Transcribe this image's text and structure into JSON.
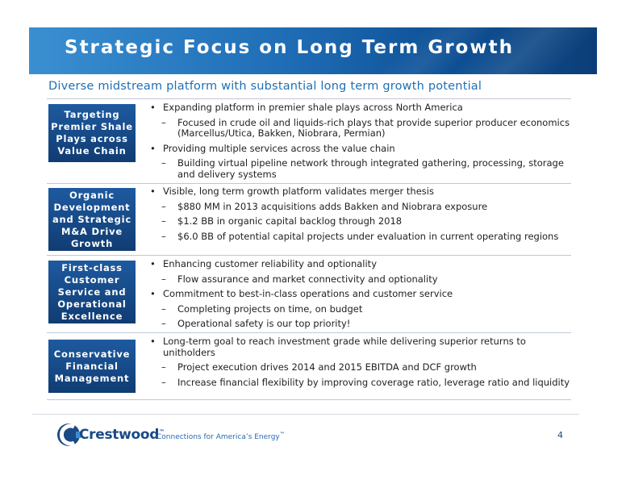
{
  "header": {
    "title": "Strategic Focus on Long Term Growth",
    "subtitle": "Diverse midstream platform with substantial long term growth potential"
  },
  "sections": [
    {
      "label": "Targeting Premier Shale Plays across Value Chain",
      "items": [
        {
          "level": 1,
          "marker": "•",
          "text": "Expanding platform in premier shale plays across North America"
        },
        {
          "level": 2,
          "marker": "–",
          "text": "Focused in crude oil and liquids-rich plays that provide superior producer economics (Marcellus/Utica, Bakken, Niobrara, Permian)"
        },
        {
          "level": 1,
          "marker": "•",
          "text": "Providing multiple services across the value chain"
        },
        {
          "level": 2,
          "marker": "–",
          "text": "Building virtual pipeline network through integrated gathering, processing, storage and delivery systems"
        }
      ]
    },
    {
      "label": "Organic Development and Strategic M&A Drive Growth",
      "items": [
        {
          "level": 1,
          "marker": "•",
          "text": "Visible, long term growth platform validates merger thesis"
        },
        {
          "level": 2,
          "marker": "–",
          "text": "$880 MM in 2013 acquisitions adds Bakken and Niobrara exposure"
        },
        {
          "level": 2,
          "marker": "–",
          "text": "$1.2 BB in organic capital backlog through 2018"
        },
        {
          "level": 2,
          "marker": "–",
          "text": "$6.0 BB of potential capital projects under evaluation in current operating regions"
        }
      ]
    },
    {
      "label": "First-class Customer Service and Operational Excellence",
      "items": [
        {
          "level": 1,
          "marker": "•",
          "text": "Enhancing customer reliability and optionality"
        },
        {
          "level": 2,
          "marker": "–",
          "text": "Flow assurance and market connectivity and optionality"
        },
        {
          "level": 1,
          "marker": "•",
          "text": "Commitment to best-in-class operations and customer service"
        },
        {
          "level": 2,
          "marker": "–",
          "text": "Completing projects on time, on budget"
        },
        {
          "level": 2,
          "marker": "–",
          "text": "Operational safety is our top priority!"
        }
      ]
    },
    {
      "label": "Conservative Financial Management",
      "items": [
        {
          "level": 1,
          "marker": "•",
          "text": "Long-term goal to reach investment grade while delivering superior returns to unitholders"
        },
        {
          "level": 2,
          "marker": "–",
          "text": "Project execution drives 2014 and 2015 EBITDA and DCF growth"
        },
        {
          "level": 2,
          "marker": "–",
          "text": "Increase financial flexibility by improving coverage ratio, leverage ratio and liquidity"
        }
      ]
    }
  ],
  "footer": {
    "logo_text": "Crestwood",
    "logo_tm": "™",
    "tagline": "Connections for America’s Energy",
    "tagline_tm": "™",
    "page_number": "4"
  },
  "colors": {
    "banner_dark": "#0b3e78",
    "banner_light": "#3a8fd1",
    "subtitle": "#1f6fb6",
    "label_box": "#103c72"
  }
}
